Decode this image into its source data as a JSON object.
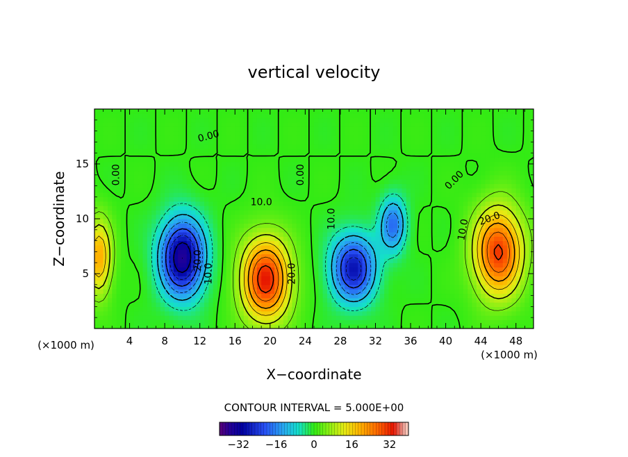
{
  "chart_data": {
    "type": "heatmap",
    "title": "vertical velocity",
    "xlabel": "X−coordinate",
    "ylabel": "Z−coordinate",
    "x_unit_left": "(×1000 m)",
    "x_unit_right": "(×1000 m)",
    "xlim": [
      0,
      50
    ],
    "ylim": [
      0,
      20
    ],
    "x_ticks": [
      4,
      8,
      12,
      16,
      20,
      24,
      28,
      32,
      36,
      40,
      44,
      48
    ],
    "y_ticks": [
      5,
      10,
      15
    ],
    "contour_interval_text": "CONTOUR INTERVAL = 5.000E+00",
    "colorbar": {
      "min": -40,
      "max": 40,
      "ticks": [
        -32,
        -16,
        0,
        16,
        32
      ],
      "tick_labels": [
        "−32",
        "−16",
        "0",
        "16",
        "32"
      ]
    },
    "cells": [
      {
        "x": 0.5,
        "z": 6.5,
        "w": 20,
        "sx": 1.5,
        "sz": 3.5
      },
      {
        "x": 10,
        "z": 6.5,
        "w": -35,
        "sx": 2.5,
        "sz": 3.5
      },
      {
        "x": 19.5,
        "z": 4.5,
        "w": 33,
        "sx": 2.8,
        "sz": 3.8
      },
      {
        "x": 29.5,
        "z": 5.5,
        "w": -28,
        "sx": 2.5,
        "sz": 3.0
      },
      {
        "x": 34,
        "z": 9.5,
        "w": -18,
        "sx": 1.5,
        "sz": 2.5
      },
      {
        "x": 46,
        "z": 7.0,
        "w": 31,
        "sx": 2.8,
        "sz": 4.0
      }
    ],
    "contour_labels": [
      {
        "text": "0.00",
        "x": 2.5,
        "z": 14.0,
        "rot": -90
      },
      {
        "text": "0.00",
        "x": 13.0,
        "z": 17.5,
        "rot": -15
      },
      {
        "text": "0.00",
        "x": 23.5,
        "z": 14.0,
        "rot": -90
      },
      {
        "text": "0.00",
        "x": 41.0,
        "z": 13.5,
        "rot": -45
      },
      {
        "text": "10.0",
        "x": 19.0,
        "z": 11.5,
        "rot": 0
      },
      {
        "text": "20.0",
        "x": 22.5,
        "z": 5.0,
        "rot": -90
      },
      {
        "text": "10.0",
        "x": 13.0,
        "z": 5.0,
        "rot": -90
      },
      {
        "text": "20.0",
        "x": 11.8,
        "z": 6.2,
        "rot": -90
      },
      {
        "text": "10.0",
        "x": 27.0,
        "z": 10.0,
        "rot": -90
      },
      {
        "text": "10.0",
        "x": 42.0,
        "z": 9.0,
        "rot": -80
      },
      {
        "text": "20.0",
        "x": 45.0,
        "z": 10.0,
        "rot": -20
      }
    ]
  }
}
